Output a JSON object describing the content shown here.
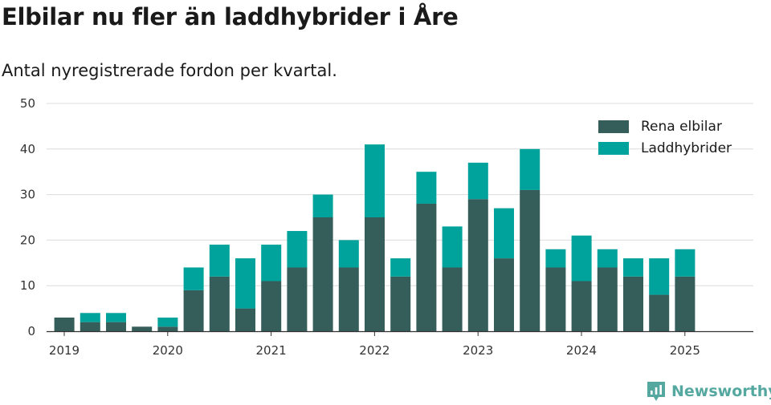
{
  "chart_data": {
    "type": "bar",
    "stacked": true,
    "title": "Elbilar nu fler än laddhybrider i Åre",
    "subtitle": "Antal nyregistrerade fordon per kvartal.",
    "xlabel": "",
    "ylabel": "",
    "ylim": [
      0,
      50
    ],
    "yticks": [
      0,
      10,
      20,
      30,
      40,
      50
    ],
    "grid": true,
    "legend_position": "top-right",
    "x_tick_labels": [
      "2019",
      "2020",
      "2021",
      "2022",
      "2023",
      "2024",
      "2025"
    ],
    "categories": [
      "2019 Q1",
      "2019 Q2",
      "2019 Q3",
      "2019 Q4",
      "2020 Q1",
      "2020 Q2",
      "2020 Q3",
      "2020 Q4",
      "2021 Q1",
      "2021 Q2",
      "2021 Q3",
      "2021 Q4",
      "2022 Q1",
      "2022 Q2",
      "2022 Q3",
      "2022 Q4",
      "2023 Q1",
      "2023 Q2",
      "2023 Q3",
      "2023 Q4",
      "2024 Q1",
      "2024 Q2",
      "2024 Q3",
      "2024 Q4",
      "2025 Q1",
      "2025 Q2"
    ],
    "series": [
      {
        "name": "Rena elbilar",
        "color": "#355e5b",
        "values": [
          3,
          2,
          2,
          1,
          1,
          9,
          12,
          5,
          11,
          14,
          25,
          14,
          25,
          12,
          28,
          14,
          29,
          16,
          31,
          14,
          11,
          14,
          12,
          8,
          12,
          null
        ]
      },
      {
        "name": "Laddhybrider",
        "color": "#00a39b",
        "values": [
          0,
          2,
          2,
          0,
          2,
          5,
          7,
          11,
          8,
          8,
          5,
          6,
          16,
          4,
          7,
          9,
          8,
          11,
          9,
          4,
          10,
          4,
          4,
          8,
          6,
          null
        ]
      }
    ]
  },
  "branding": {
    "name": "Newsworthy",
    "icon": "newsworthy-logo-icon"
  },
  "colors": {
    "brand": "#55a8a0",
    "grid": "#dcdcdc",
    "axis": "#333333"
  }
}
